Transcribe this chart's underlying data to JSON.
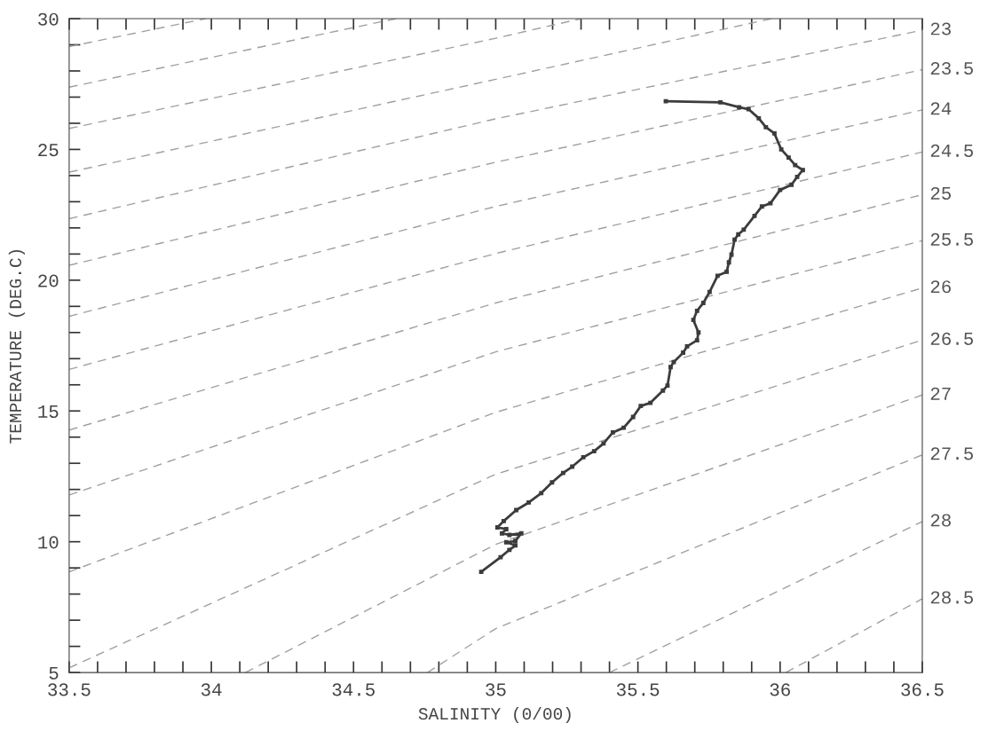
{
  "chart_data": {
    "type": "line",
    "xlabel": "SALINITY (0/00)",
    "ylabel": "TEMPERATURE (DEG.C)",
    "xlim": [
      33.5,
      36.5
    ],
    "ylim": [
      5,
      30
    ],
    "xticks": [
      33.5,
      {
        "value": 33.6,
        "label": null
      },
      {
        "value": 33.7,
        "label": null
      },
      {
        "value": 33.8,
        "label": null
      },
      {
        "value": 33.9,
        "label": null
      },
      34,
      {
        "value": 34.1,
        "label": null
      },
      {
        "value": 34.2,
        "label": null
      },
      {
        "value": 34.3,
        "label": null
      },
      {
        "value": 34.4,
        "label": null
      },
      34.5,
      {
        "value": 34.6,
        "label": null
      },
      {
        "value": 34.7,
        "label": null
      },
      {
        "value": 34.8,
        "label": null
      },
      {
        "value": 34.9,
        "label": null
      },
      35,
      {
        "value": 35.1,
        "label": null
      },
      {
        "value": 35.2,
        "label": null
      },
      {
        "value": 35.3,
        "label": null
      },
      {
        "value": 35.4,
        "label": null
      },
      35.5,
      {
        "value": 35.6,
        "label": null
      },
      {
        "value": 35.7,
        "label": null
      },
      {
        "value": 35.8,
        "label": null
      },
      {
        "value": 35.9,
        "label": null
      },
      36,
      {
        "value": 36.1,
        "label": null
      },
      {
        "value": 36.2,
        "label": null
      },
      {
        "value": 36.3,
        "label": null
      },
      {
        "value": 36.4,
        "label": null
      },
      36.5
    ],
    "yticks": [
      5,
      {
        "value": 6,
        "label": null
      },
      {
        "value": 7,
        "label": null
      },
      {
        "value": 8,
        "label": null
      },
      {
        "value": 9,
        "label": null
      },
      10,
      {
        "value": 11,
        "label": null
      },
      {
        "value": 12,
        "label": null
      },
      {
        "value": 13,
        "label": null
      },
      {
        "value": 14,
        "label": null
      },
      15,
      {
        "value": 16,
        "label": null
      },
      {
        "value": 17,
        "label": null
      },
      {
        "value": 18,
        "label": null
      },
      {
        "value": 19,
        "label": null
      },
      20,
      {
        "value": 21,
        "label": null
      },
      {
        "value": 22,
        "label": null
      },
      {
        "value": 23,
        "label": null
      },
      {
        "value": 24,
        "label": null
      },
      25,
      {
        "value": 26,
        "label": null
      },
      {
        "value": 27,
        "label": null
      },
      {
        "value": 28,
        "label": null
      },
      {
        "value": 29,
        "label": null
      },
      30
    ],
    "grid": false,
    "line_style": "dashed",
    "marker": "none",
    "series": [
      {
        "color": "#a0a0a0",
        "x": [
          33.5,
          33.98
        ],
        "values": [
          28.93,
          30
        ]
      },
      {
        "color": "#a0a0a0",
        "x": [
          33.5,
          34.65
        ],
        "values": [
          27.38,
          30
        ]
      },
      {
        "color": "#a0a0a0",
        "x": [
          33.5,
          35.0,
          35.3
        ],
        "values": [
          25.8,
          29.25,
          30
        ]
      },
      {
        "color": "#a0a0a0",
        "x": [
          33.5,
          35.0,
          35.97
        ],
        "values": [
          24.13,
          27.68,
          30
        ]
      },
      {
        "name": "23",
        "color": "#a0a0a0",
        "x": [
          33.5,
          35.0,
          36.5
        ],
        "values": [
          22.35,
          26.17,
          29.56
        ]
      },
      {
        "name": "23.5",
        "color": "#a0a0a0",
        "x": [
          33.5,
          35.0,
          36.5
        ],
        "values": [
          20.57,
          24.51,
          28.05
        ]
      },
      {
        "name": "24",
        "color": "#a0a0a0",
        "x": [
          33.5,
          35.0,
          36.5
        ],
        "values": [
          18.62,
          22.82,
          26.51
        ]
      },
      {
        "name": "24.5",
        "color": "#a0a0a0",
        "x": [
          33.5,
          35.0,
          36.5
        ],
        "values": [
          16.59,
          21.02,
          24.9
        ]
      },
      {
        "name": "25",
        "color": "#a0a0a0",
        "x": [
          33.5,
          35.0,
          36.5
        ],
        "values": [
          14.27,
          19.13,
          23.27
        ]
      },
      {
        "name": "25.5",
        "color": "#a0a0a0",
        "x": [
          33.5,
          35.0,
          36.5
        ],
        "values": [
          11.79,
          17.26,
          21.51
        ]
      },
      {
        "name": "26",
        "color": "#a0a0a0",
        "x": [
          33.5,
          35.0,
          36.5
        ],
        "values": [
          8.85,
          14.95,
          19.7
        ]
      },
      {
        "name": "26.5",
        "color": "#a0a0a0",
        "x": [
          33.5,
          35.0,
          36.5
        ],
        "values": [
          5.18,
          12.58,
          17.71
        ]
      },
      {
        "name": "27",
        "color": "#a0a0a0",
        "x": [
          34.12,
          35.0,
          36.5
        ],
        "values": [
          5,
          9.9,
          15.61
        ]
      },
      {
        "name": "27.5",
        "color": "#a0a0a0",
        "x": [
          34.76,
          35.0,
          36.5
        ],
        "values": [
          5,
          6.68,
          13.32
        ]
      },
      {
        "name": "28",
        "color": "#a0a0a0",
        "x": [
          35.4,
          36.5
        ],
        "values": [
          5,
          10.77
        ]
      },
      {
        "name": "28.5",
        "color": "#a0a0a0",
        "x": [
          36.02,
          36.5
        ],
        "values": [
          5,
          7.82
        ]
      },
      {
        "color": "#3c3c3c",
        "line_style": "solid",
        "marker": "square",
        "x": [
          35.598,
          35.79,
          35.856,
          35.889,
          35.925,
          35.95,
          35.98,
          36.004,
          36.03,
          36.053,
          36.08,
          36.06,
          36.04,
          36.0,
          35.966,
          35.936,
          35.91,
          35.872,
          35.853,
          35.84,
          35.829,
          35.82,
          35.812,
          35.78,
          35.752,
          35.73,
          35.708,
          35.695,
          35.713,
          35.708,
          35.673,
          35.659,
          35.626,
          35.615,
          35.604,
          35.588,
          35.544,
          35.51,
          35.483,
          35.45,
          35.412,
          35.379,
          35.346,
          35.308,
          35.269,
          35.237,
          35.198,
          35.16,
          35.116,
          35.072,
          35.028,
          35.006,
          35.037,
          35.022,
          35.048,
          35.09,
          35.069,
          35.037,
          35.069,
          35.048,
          35.017,
          34.949
        ],
        "values": [
          26.84,
          26.8,
          26.61,
          26.54,
          26.19,
          25.85,
          25.61,
          25.0,
          24.69,
          24.4,
          24.21,
          23.95,
          23.65,
          23.45,
          22.94,
          22.82,
          22.46,
          21.93,
          21.75,
          21.55,
          20.98,
          20.68,
          20.32,
          20.17,
          19.55,
          19.13,
          18.83,
          18.48,
          18.0,
          17.7,
          17.47,
          17.23,
          16.87,
          16.68,
          15.97,
          15.78,
          15.31,
          15.19,
          14.77,
          14.36,
          14.18,
          13.76,
          13.46,
          13.23,
          12.87,
          12.63,
          12.27,
          11.86,
          11.5,
          11.21,
          10.79,
          10.55,
          10.48,
          10.32,
          10.26,
          10.32,
          10.03,
          9.98,
          9.86,
          9.69,
          9.41,
          8.85
        ]
      }
    ]
  }
}
